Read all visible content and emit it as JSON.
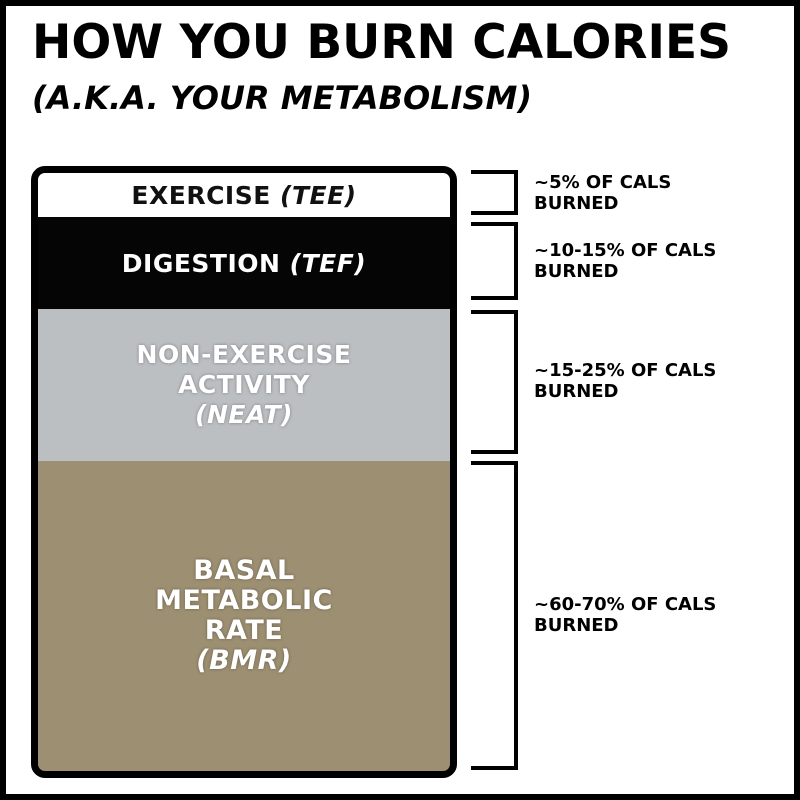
{
  "title": "HOW YOU BURN CALORIES",
  "subtitle": "(A.K.A. YOUR METABOLISM)",
  "segments": [
    {
      "id": "tee",
      "name": "EXERCISE",
      "abbr": "(TEE)",
      "share_label_line1": "~5% OF CALS",
      "share_label_line2": "BURNED",
      "color": "#ffffff"
    },
    {
      "id": "tef",
      "name": "DIGESTION",
      "abbr": "(TEF)",
      "share_label_line1": "~10-15% OF CALS",
      "share_label_line2": "BURNED",
      "color": "#050505"
    },
    {
      "id": "neat",
      "name_line1": "NON-EXERCISE",
      "name_line2": "ACTIVITY",
      "abbr": "(NEAT)",
      "share_label_line1": "~15-25% OF CALS",
      "share_label_line2": "BURNED",
      "color": "#bcbfc2"
    },
    {
      "id": "bmr",
      "name_line1": "BASAL",
      "name_line2": "METABOLIC",
      "name_line3": "RATE",
      "abbr": "(BMR)",
      "share_label_line1": "~60-70% OF CALS",
      "share_label_line2": "BURNED",
      "color": "#9d8f71"
    }
  ]
}
